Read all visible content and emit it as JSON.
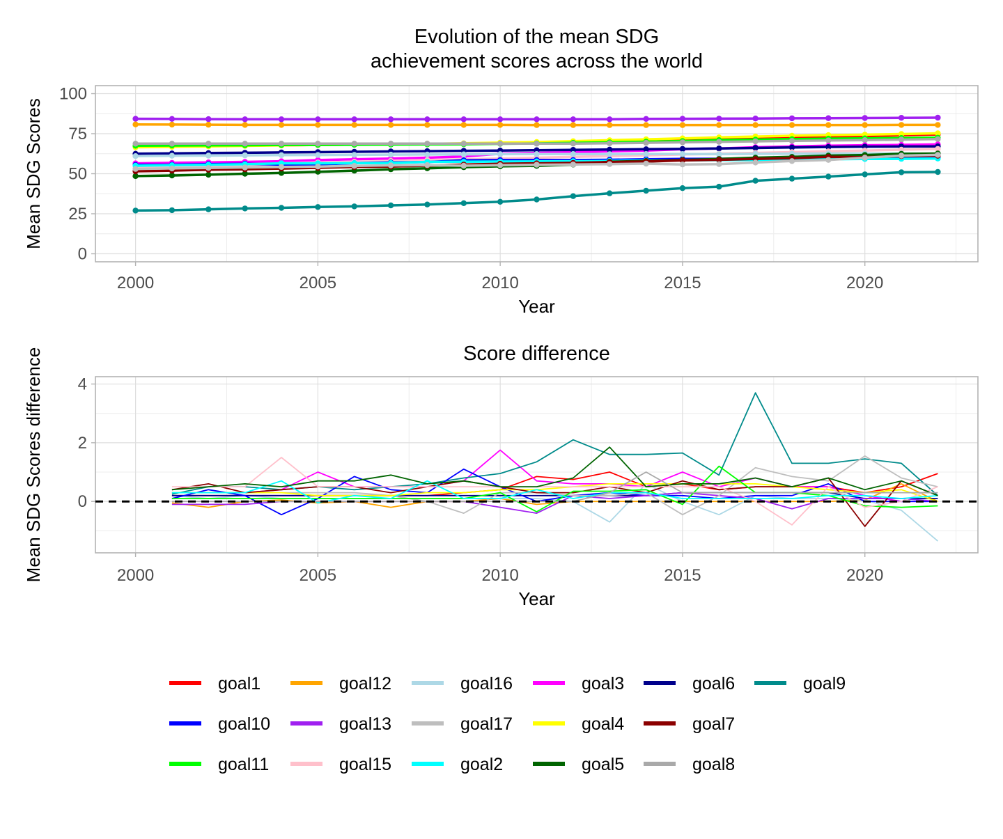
{
  "colors": {
    "goal1": "#ff0000",
    "goal2": "#00ffff",
    "goal3": "#ff00ff",
    "goal4": "#ffff00",
    "goal5": "#006400",
    "goal6": "#00008b",
    "goal7": "#8b0000",
    "goal8": "#a9a9a9",
    "goal9": "#008b8b",
    "goal10": "#0000ff",
    "goal11": "#00ff00",
    "goal12": "#ffa500",
    "goal13": "#a020f0",
    "goal15": "#ffc0cb",
    "goal16": "#add8e6",
    "goal17": "#bebebe"
  },
  "legend": {
    "columns": [
      [
        "goal1",
        "goal10",
        "goal11"
      ],
      [
        "goal12",
        "goal13",
        "goal15"
      ],
      [
        "goal16",
        "goal17",
        "goal2"
      ],
      [
        "goal3",
        "goal4",
        "goal5"
      ],
      [
        "goal6",
        "goal7",
        "goal8"
      ],
      [
        "goal9"
      ]
    ]
  },
  "chart_data": [
    {
      "type": "line",
      "title_lines": [
        "Evolution of the mean SDG",
        "achievement scores across the world"
      ],
      "xlabel": "Year",
      "ylabel": "Mean SDG Scores",
      "xlim": [
        1998.9,
        2023.1
      ],
      "ylim": [
        -5,
        105
      ],
      "xticks": [
        2000,
        2005,
        2010,
        2015,
        2020
      ],
      "yticks": [
        0,
        25,
        50,
        75,
        100
      ],
      "grid": true,
      "markers": true,
      "x": [
        2000,
        2001,
        2002,
        2003,
        2004,
        2005,
        2006,
        2007,
        2008,
        2009,
        2010,
        2011,
        2012,
        2013,
        2014,
        2015,
        2016,
        2017,
        2018,
        2019,
        2020,
        2021,
        2022
      ],
      "series": [
        {
          "name": "goal13",
          "values": [
            84.3,
            84.2,
            84.1,
            84.0,
            84.0,
            84.0,
            84.0,
            84.0,
            84.0,
            84.0,
            84.0,
            84.0,
            84.0,
            84.0,
            84.2,
            84.3,
            84.4,
            84.5,
            84.6,
            84.7,
            84.8,
            84.9,
            85.0
          ]
        },
        {
          "name": "goal12",
          "values": [
            80.8,
            80.7,
            80.6,
            80.5,
            80.5,
            80.5,
            80.5,
            80.5,
            80.5,
            80.5,
            80.5,
            80.4,
            80.4,
            80.4,
            80.4,
            80.4,
            80.4,
            80.4,
            80.4,
            80.4,
            80.4,
            80.5,
            80.5
          ]
        },
        {
          "name": "goal1",
          "values": [
            67.0,
            67.2,
            67.4,
            67.6,
            67.8,
            68.0,
            68.2,
            68.4,
            68.6,
            68.8,
            69.0,
            69.3,
            69.6,
            70.0,
            70.5,
            71.0,
            71.5,
            72.0,
            72.5,
            73.0,
            73.5,
            74.0,
            74.5
          ]
        },
        {
          "name": "goal4",
          "values": [
            66.5,
            66.8,
            67.1,
            67.4,
            67.7,
            68.0,
            68.2,
            68.4,
            68.7,
            69.0,
            69.4,
            69.8,
            70.3,
            70.9,
            71.5,
            72.1,
            72.7,
            73.2,
            73.7,
            74.1,
            74.4,
            74.8,
            75.2
          ]
        },
        {
          "name": "goal11",
          "values": [
            67.5,
            67.6,
            67.7,
            67.8,
            67.9,
            68.0,
            68.1,
            68.2,
            68.3,
            68.4,
            68.7,
            68.9,
            69.3,
            69.6,
            70.0,
            70.4,
            71.0,
            71.3,
            71.6,
            71.9,
            72.1,
            72.3,
            72.5
          ]
        },
        {
          "name": "goal8",
          "values": [
            68.8,
            68.8,
            68.8,
            68.8,
            68.8,
            68.8,
            68.8,
            68.8,
            68.8,
            68.8,
            68.8,
            68.8,
            68.8,
            69.0,
            69.3,
            69.6,
            69.9,
            70.2,
            70.5,
            70.8,
            71.0,
            71.3,
            71.6
          ]
        },
        {
          "name": "goal3",
          "values": [
            56.5,
            56.8,
            57.1,
            57.4,
            57.8,
            58.5,
            59.0,
            59.5,
            60.0,
            60.8,
            62.5,
            63.0,
            63.5,
            64.0,
            64.5,
            65.3,
            65.8,
            66.5,
            67.0,
            67.5,
            67.8,
            68.0,
            68.3
          ]
        },
        {
          "name": "goal6",
          "values": [
            62.5,
            62.7,
            62.9,
            63.1,
            63.3,
            63.5,
            63.7,
            63.9,
            64.1,
            64.3,
            64.5,
            64.7,
            64.9,
            65.1,
            65.3,
            65.5,
            65.8,
            66.1,
            66.4,
            66.7,
            66.9,
            67.0,
            67.1
          ]
        },
        {
          "name": "goal15",
          "values": [
            53.5,
            54.0,
            54.5,
            55.0,
            56.5,
            57.0,
            57.5,
            58.0,
            58.5,
            59.0,
            59.5,
            60.0,
            60.5,
            61.0,
            61.5,
            62.0,
            62.5,
            63.0,
            63.5,
            64.0,
            64.5,
            65.0,
            65.5
          ]
        },
        {
          "name": "goal10",
          "values": [
            55.5,
            55.6,
            56.0,
            56.2,
            55.7,
            55.8,
            56.6,
            57.0,
            57.3,
            58.4,
            58.5,
            58.5,
            58.5,
            58.7,
            59.0,
            59.2,
            59.3,
            59.5,
            59.7,
            60.3,
            60.3,
            60.3,
            60.3
          ]
        },
        {
          "name": "goal2",
          "values": [
            55.0,
            55.3,
            55.6,
            55.9,
            56.5,
            56.5,
            56.6,
            56.7,
            57.4,
            57.5,
            57.6,
            57.7,
            57.8,
            58.0,
            58.3,
            58.4,
            58.5,
            58.6,
            58.8,
            59.0,
            59.2,
            59.3,
            59.5
          ]
        },
        {
          "name": "goal16",
          "values": [
            61.0,
            61.2,
            61.3,
            61.5,
            61.6,
            61.7,
            61.8,
            61.9,
            62.0,
            62.1,
            62.2,
            62.3,
            62.3,
            62.2,
            62.3,
            62.3,
            62.2,
            62.4,
            62.5,
            62.6,
            62.6,
            62.7,
            62.4
          ]
        },
        {
          "name": "goal5",
          "values": [
            48.5,
            48.9,
            49.4,
            50.0,
            50.5,
            51.2,
            51.9,
            52.8,
            53.4,
            54.1,
            54.6,
            54.9,
            55.7,
            57.5,
            58.0,
            58.6,
            59.2,
            60.0,
            60.5,
            61.3,
            61.7,
            62.4,
            62.6
          ]
        },
        {
          "name": "goal7",
          "values": [
            51.5,
            51.9,
            52.5,
            52.8,
            53.2,
            53.7,
            54.2,
            54.5,
            55.0,
            55.7,
            56.2,
            56.5,
            56.8,
            57.3,
            57.6,
            58.3,
            58.7,
            59.2,
            59.7,
            60.5,
            60.3,
            61.0,
            61.2
          ]
        },
        {
          "name": "goal17",
          "values": [
            53.0,
            53.3,
            53.6,
            53.9,
            54.2,
            54.5,
            54.9,
            55.2,
            55.4,
            55.0,
            55.3,
            55.6,
            55.8,
            56.0,
            56.3,
            55.8,
            56.0,
            57.0,
            57.9,
            58.6,
            60.0,
            61.3,
            61.8
          ]
        },
        {
          "name": "goal9",
          "values": [
            27.0,
            27.2,
            27.8,
            28.3,
            28.7,
            29.2,
            29.6,
            30.2,
            30.8,
            31.6,
            32.5,
            33.9,
            36.0,
            37.8,
            39.4,
            41.0,
            41.9,
            45.6,
            46.9,
            48.2,
            49.6,
            50.9,
            51.1
          ]
        }
      ]
    },
    {
      "type": "line",
      "title_lines": [
        "Score difference"
      ],
      "xlabel": "Year",
      "ylabel": "Mean SDG Scores difference",
      "xlim": [
        1998.9,
        2023.1
      ],
      "ylim": [
        -1.75,
        4.25
      ],
      "xticks": [
        2000,
        2005,
        2010,
        2015,
        2020
      ],
      "yticks": [
        0,
        2,
        4
      ],
      "grid": true,
      "hline": 0,
      "x": [
        2001,
        2002,
        2003,
        2004,
        2005,
        2006,
        2007,
        2008,
        2009,
        2010,
        2011,
        2012,
        2013,
        2014,
        2015,
        2016,
        2017,
        2018,
        2019,
        2020,
        2021,
        2022
      ],
      "series": [
        {
          "name": "goal1",
          "values": [
            0.2,
            0.2,
            0.2,
            0.2,
            0.2,
            0.2,
            0.2,
            0.2,
            0.3,
            0.4,
            0.85,
            0.75,
            1.0,
            0.5,
            0.6,
            0.4,
            0.5,
            0.5,
            0.5,
            0.3,
            0.5,
            0.95
          ]
        },
        {
          "name": "goal12",
          "values": [
            -0.05,
            -0.2,
            0.0,
            0.05,
            -0.05,
            0.0,
            -0.2,
            0.0,
            0.0,
            0.1,
            -0.1,
            0.0,
            0.0,
            0.0,
            0.0,
            0.0,
            0.0,
            0.0,
            0.0,
            0.05,
            0.6,
            0.0
          ]
        },
        {
          "name": "goal16",
          "values": [
            0.2,
            0.1,
            0.2,
            0.1,
            0.1,
            0.1,
            0.1,
            0.1,
            0.1,
            0.1,
            0.1,
            0.0,
            -0.7,
            0.6,
            0.0,
            -0.45,
            0.2,
            0.1,
            0.1,
            0.05,
            -0.3,
            -1.35
          ]
        },
        {
          "name": "goal3",
          "values": [
            0.3,
            0.3,
            0.3,
            0.4,
            1.0,
            0.5,
            0.5,
            0.5,
            0.7,
            1.75,
            0.7,
            0.6,
            0.6,
            0.5,
            1.0,
            0.5,
            0.8,
            0.5,
            0.5,
            0.2,
            0.0,
            0.0
          ]
        },
        {
          "name": "goal6",
          "values": [
            0.2,
            0.2,
            0.2,
            0.2,
            0.2,
            0.2,
            0.2,
            0.2,
            0.2,
            0.2,
            0.2,
            0.2,
            0.2,
            0.2,
            0.3,
            0.3,
            0.3,
            0.3,
            0.3,
            0.1,
            0.1,
            0.1
          ]
        },
        {
          "name": "goal9",
          "values": [
            0.25,
            0.5,
            0.5,
            0.4,
            0.5,
            0.4,
            0.5,
            0.6,
            0.8,
            0.95,
            1.35,
            2.1,
            1.6,
            1.6,
            1.65,
            0.9,
            3.7,
            1.3,
            1.3,
            1.45,
            1.3,
            0.2
          ]
        },
        {
          "name": "goal10",
          "values": [
            0.1,
            0.4,
            0.2,
            -0.45,
            0.1,
            0.85,
            0.4,
            0.3,
            1.1,
            0.5,
            0.0,
            0.2,
            0.3,
            0.2,
            0.2,
            0.1,
            0.2,
            0.2,
            0.6,
            0.0,
            0.0,
            0.0
          ]
        },
        {
          "name": "goal13",
          "values": [
            -0.1,
            -0.1,
            -0.1,
            0.0,
            0.0,
            0.0,
            0.0,
            0.0,
            0.0,
            -0.2,
            -0.4,
            0.2,
            0.1,
            0.2,
            0.3,
            0.2,
            0.1,
            -0.25,
            0.1,
            0.1,
            0.1,
            0.0
          ]
        },
        {
          "name": "goal17",
          "values": [
            0.3,
            0.3,
            0.3,
            0.3,
            0.3,
            0.3,
            0.2,
            0.0,
            -0.4,
            0.3,
            0.3,
            0.2,
            0.2,
            0.3,
            -0.45,
            0.2,
            1.15,
            0.85,
            0.7,
            1.55,
            0.8,
            0.5
          ]
        },
        {
          "name": "goal4",
          "values": [
            0.3,
            0.3,
            0.3,
            0.3,
            0.2,
            0.2,
            0.2,
            0.3,
            0.3,
            0.4,
            0.4,
            0.5,
            0.6,
            0.6,
            0.6,
            0.6,
            0.6,
            0.5,
            0.4,
            0.3,
            0.4,
            0.0
          ]
        },
        {
          "name": "goal7",
          "values": [
            0.4,
            0.6,
            0.3,
            0.4,
            0.5,
            0.5,
            0.3,
            0.5,
            0.7,
            0.5,
            0.3,
            0.3,
            0.5,
            0.3,
            0.7,
            0.4,
            0.5,
            0.5,
            0.8,
            -0.85,
            0.7,
            0.2
          ]
        },
        {
          "name": "goal11",
          "values": [
            0.1,
            0.1,
            0.1,
            0.1,
            0.1,
            0.1,
            0.1,
            0.1,
            0.1,
            0.3,
            -0.35,
            0.35,
            0.35,
            0.4,
            -0.1,
            1.2,
            0.3,
            0.3,
            0.2,
            -0.15,
            -0.2,
            -0.15
          ]
        },
        {
          "name": "goal15",
          "values": [
            0.5,
            0.5,
            0.5,
            1.5,
            0.5,
            0.5,
            0.5,
            0.5,
            0.5,
            0.5,
            0.5,
            0.5,
            0.5,
            0.5,
            0.5,
            0.5,
            0.0,
            -0.8,
            0.5,
            -0.2,
            0.0,
            0.5
          ]
        },
        {
          "name": "goal2",
          "values": [
            0.3,
            0.3,
            0.3,
            0.7,
            -0.05,
            0.2,
            0.1,
            0.7,
            0.1,
            0.1,
            0.4,
            0.1,
            0.3,
            0.3,
            0.1,
            0.1,
            0.1,
            0.1,
            0.2,
            0.2,
            0.1,
            0.2
          ]
        },
        {
          "name": "goal5",
          "values": [
            0.4,
            0.5,
            0.6,
            0.5,
            0.7,
            0.7,
            0.9,
            0.6,
            0.7,
            0.5,
            0.5,
            0.8,
            1.85,
            0.5,
            0.6,
            0.6,
            0.8,
            0.5,
            0.8,
            0.4,
            0.7,
            0.2
          ]
        },
        {
          "name": "goal8",
          "values": [
            0.0,
            0.0,
            0.0,
            0.0,
            0.0,
            0.0,
            0.0,
            0.0,
            0.0,
            0.0,
            0.0,
            0.0,
            0.3,
            1.0,
            0.3,
            0.3,
            0.3,
            0.3,
            0.3,
            0.3,
            0.3,
            0.3
          ]
        }
      ]
    }
  ]
}
